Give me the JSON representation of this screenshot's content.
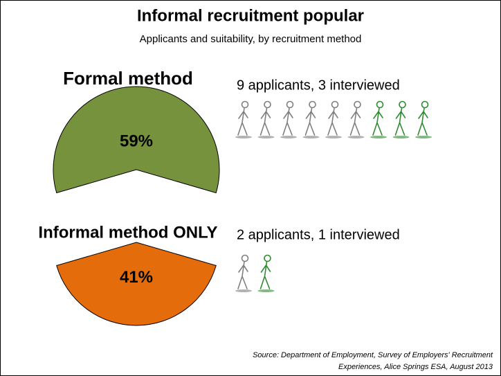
{
  "chart_data": {
    "type": "pie",
    "title": "Informal recruitment popular",
    "subtitle": "Applicants and suitability, by recruitment method",
    "categories": [
      "Formal method",
      "Informal method ONLY"
    ],
    "values": [
      59,
      41
    ],
    "value_labels": [
      "59%",
      "41%"
    ],
    "colors": [
      "#76923c",
      "#e46c0a"
    ],
    "annotations": [
      "9 applicants, 3 interviewed",
      "2 applicants, 1 interviewed"
    ],
    "pictogram": {
      "applicants": [
        9,
        2
      ],
      "interviewed": [
        3,
        1
      ],
      "colors": [
        "#7f7f7f",
        "#2e8b2e"
      ]
    },
    "source": [
      "Source: Department of Employment, Survey of Employers' Recruitment",
      "Experiences, Alice Springs ESA, August 2013"
    ]
  }
}
